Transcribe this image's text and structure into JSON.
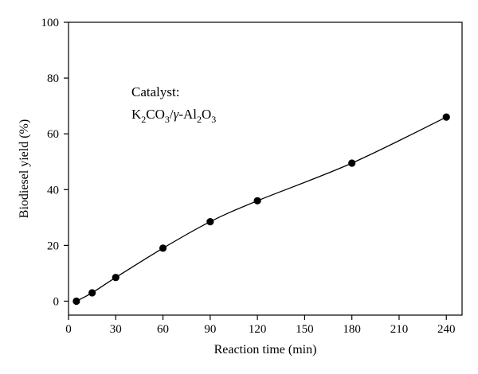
{
  "chart_data": {
    "type": "line",
    "x": [
      5,
      15,
      30,
      60,
      90,
      120,
      180,
      240
    ],
    "series": [
      {
        "values": [
          0,
          3,
          8.5,
          19,
          28.5,
          36,
          49.5,
          66
        ]
      }
    ],
    "xlabel": "Reaction time (min)",
    "ylabel": "Biodiesel yield (%)",
    "xlim": [
      0,
      250
    ],
    "ylim": [
      -5,
      100
    ],
    "xticks": [
      0,
      30,
      60,
      90,
      120,
      150,
      180,
      210,
      240
    ],
    "yticks": [
      0,
      20,
      40,
      60,
      80,
      100
    ],
    "grid": false,
    "annotation": {
      "line1": "Catalyst:",
      "k": "K",
      "k_sub": "2",
      "co": "CO",
      "co_sub": "3",
      "slash": "/",
      "gamma": "γ",
      "al": "-Al",
      "al_sub": "2",
      "o": "O",
      "o_sub": "3"
    }
  }
}
